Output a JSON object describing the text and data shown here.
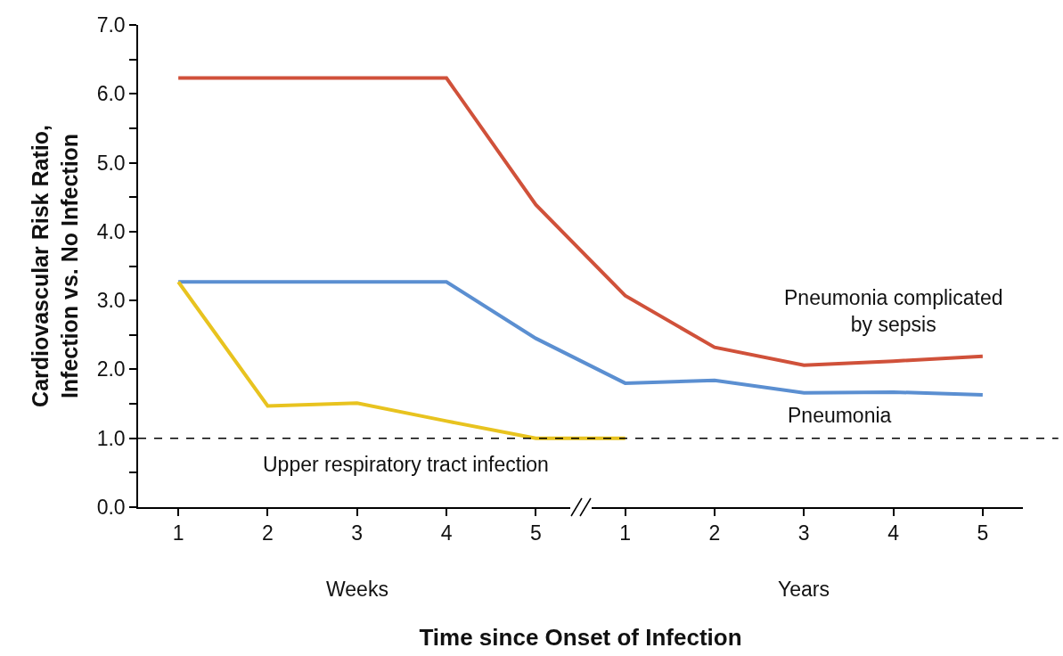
{
  "chart_data": {
    "type": "line",
    "xlabel": "Time since Onset of Infection",
    "ylabel": "Cardiovascular Risk Ratio, Infection vs. No Infection",
    "categories": [
      "1",
      "2",
      "3",
      "4",
      "5",
      "1",
      "2",
      "3",
      "4",
      "5"
    ],
    "series": [
      {
        "name": "Pneumonia complicated by sepsis",
        "color": "#d0513a",
        "values": [
          6.23,
          6.23,
          6.23,
          6.23,
          4.39,
          3.07,
          2.32,
          2.06,
          2.12,
          2.19
        ]
      },
      {
        "name": "Pneumonia",
        "color": "#5b8fd1",
        "values": [
          3.27,
          3.27,
          3.27,
          3.27,
          2.45,
          1.8,
          1.84,
          1.66,
          1.67,
          1.63
        ]
      },
      {
        "name": "Upper respiratory tract infection",
        "color": "#e8c31f",
        "values": [
          3.27,
          1.47,
          1.51,
          1.25,
          1.0,
          1.0,
          null,
          null,
          null,
          null
        ]
      }
    ],
    "ylim": [
      0,
      7
    ],
    "yticks": [
      {
        "value": 0,
        "label": "0.0"
      },
      {
        "value": 0.5,
        "label": null
      },
      {
        "value": 1,
        "label": "1.0"
      },
      {
        "value": 1.5,
        "label": null
      },
      {
        "value": 2,
        "label": "2.0"
      },
      {
        "value": 2.5,
        "label": null
      },
      {
        "value": 3,
        "label": "3.0"
      },
      {
        "value": 3.5,
        "label": null
      },
      {
        "value": 4,
        "label": "4.0"
      },
      {
        "value": 4.5,
        "label": null
      },
      {
        "value": 5,
        "label": "5.0"
      },
      {
        "value": 5.5,
        "label": null
      },
      {
        "value": 6,
        "label": "6.0"
      },
      {
        "value": 6.5,
        "label": null
      },
      {
        "value": 7,
        "label": "7.0"
      }
    ],
    "ref_lines": [
      {
        "axis": "y",
        "value": 1,
        "color": "#000000",
        "line_style": "dashed"
      }
    ],
    "annotations": [
      "Weeks",
      "Years"
    ],
    "grid": false,
    "legend": false,
    "marker": "none",
    "line_style": "solid"
  }
}
